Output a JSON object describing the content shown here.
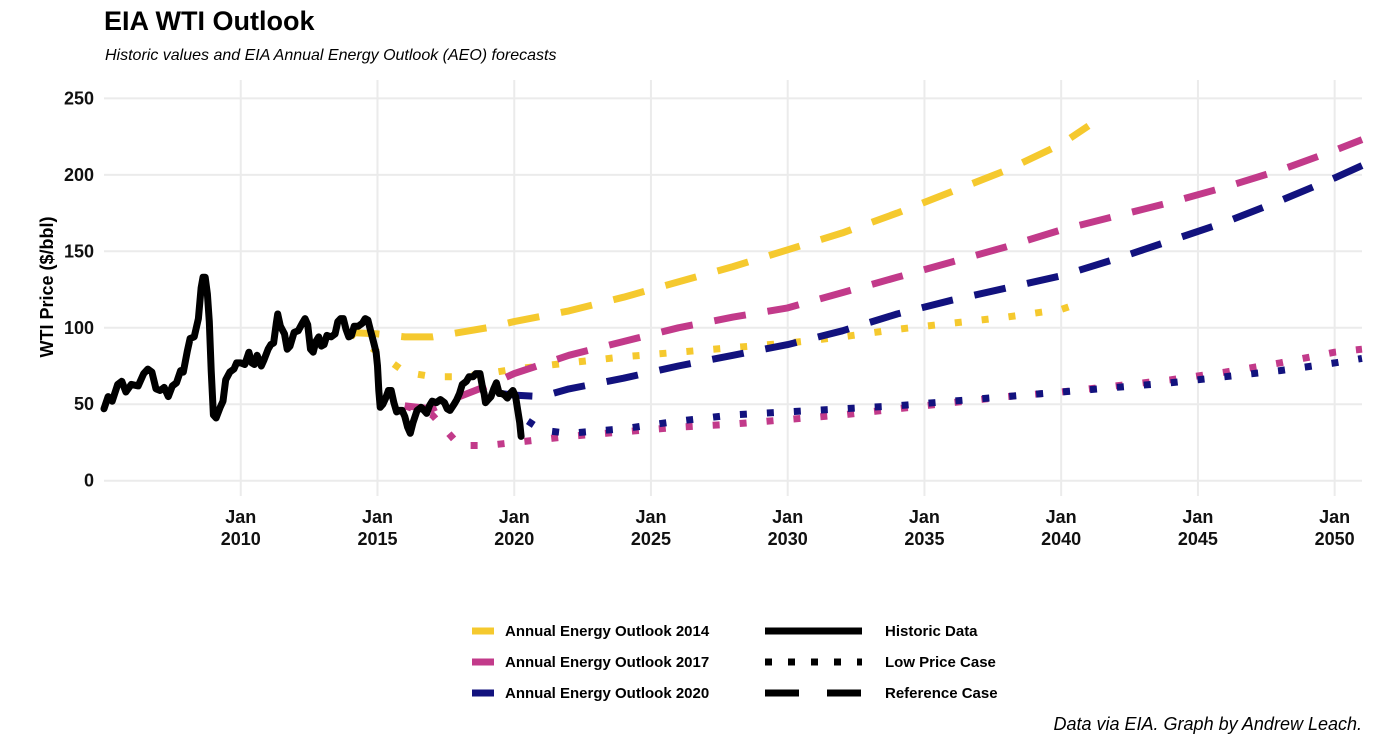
{
  "header": {
    "title": "EIA WTI Outlook",
    "subtitle": "Historic values and EIA Annual Energy Outlook (AEO) forecasts"
  },
  "caption": "Data via EIA. Graph by Andrew Leach.",
  "colors": {
    "aeo2014": "#F5C92E",
    "aeo2017": "#C23A8A",
    "aeo2020": "#12127E",
    "historic": "#000000",
    "grid": "#EBEBEB"
  },
  "chart_data": {
    "type": "line",
    "title": "EIA WTI Outlook",
    "subtitle": "Historic values and EIA Annual Energy Outlook (AEO) forecasts",
    "xlabel": "",
    "ylabel": "WTI Price ($/bbl)",
    "ylim": [
      -10,
      262
    ],
    "xlim": [
      2005.0,
      2051.0
    ],
    "grid": true,
    "legend_position": "bottom",
    "y_ticks": [
      0,
      50,
      100,
      150,
      200,
      250
    ],
    "x_ticks": [
      {
        "value": 2010,
        "label": [
          "Jan",
          "2010"
        ]
      },
      {
        "value": 2015,
        "label": [
          "Jan",
          "2015"
        ]
      },
      {
        "value": 2020,
        "label": [
          "Jan",
          "2020"
        ]
      },
      {
        "value": 2025,
        "label": [
          "Jan",
          "2025"
        ]
      },
      {
        "value": 2030,
        "label": [
          "Jan",
          "2030"
        ]
      },
      {
        "value": 2035,
        "label": [
          "Jan",
          "2035"
        ]
      },
      {
        "value": 2040,
        "label": [
          "Jan",
          "2040"
        ]
      },
      {
        "value": 2045,
        "label": [
          "Jan",
          "2045"
        ]
      },
      {
        "value": 2050,
        "label": [
          "Jan",
          "2050"
        ]
      }
    ],
    "legend": {
      "color": [
        {
          "label": "Annual Energy Outlook 2014",
          "color_key": "aeo2014"
        },
        {
          "label": "Annual Energy Outlook 2017",
          "color_key": "aeo2017"
        },
        {
          "label": "Annual Energy Outlook 2020",
          "color_key": "aeo2020"
        }
      ],
      "linetype": [
        {
          "label": "Historic Data",
          "style": "solid"
        },
        {
          "label": "Low Price Case",
          "style": "dotted"
        },
        {
          "label": "Reference Case",
          "style": "dashed"
        }
      ]
    },
    "series": [
      {
        "id": "aeo2014-ref",
        "outlook": "Annual Energy Outlook 2014",
        "case": "Reference Case",
        "style": "dashed",
        "color_key": "aeo2014",
        "points": [
          [
            2013.9,
            97
          ],
          [
            2015,
            96
          ],
          [
            2016,
            94
          ],
          [
            2017,
            94
          ],
          [
            2018,
            97
          ],
          [
            2019,
            100
          ],
          [
            2020,
            104
          ],
          [
            2022,
            111
          ],
          [
            2024,
            120
          ],
          [
            2026,
            130
          ],
          [
            2028,
            140
          ],
          [
            2030,
            151
          ],
          [
            2032,
            162
          ],
          [
            2034,
            175
          ],
          [
            2036,
            189
          ],
          [
            2038,
            203
          ],
          [
            2040,
            220
          ],
          [
            2041,
            232
          ]
        ]
      },
      {
        "id": "aeo2014-low",
        "outlook": "Annual Energy Outlook 2014",
        "case": "Low Price Case",
        "style": "dotted",
        "color_key": "aeo2014",
        "points": [
          [
            2014,
            97
          ],
          [
            2015,
            84
          ],
          [
            2016,
            71
          ],
          [
            2017,
            68
          ],
          [
            2018,
            68
          ],
          [
            2019,
            70
          ],
          [
            2020,
            73
          ],
          [
            2022,
            77
          ],
          [
            2024,
            81
          ],
          [
            2026,
            84
          ],
          [
            2028,
            87
          ],
          [
            2030,
            90
          ],
          [
            2032,
            94
          ],
          [
            2034,
            99
          ],
          [
            2036,
            103
          ],
          [
            2038,
            107
          ],
          [
            2040,
            112
          ],
          [
            2040.5,
            115
          ]
        ]
      },
      {
        "id": "aeo2017-ref",
        "outlook": "Annual Energy Outlook 2017",
        "case": "Reference Case",
        "style": "dashed",
        "color_key": "aeo2017",
        "points": [
          [
            2016,
            49
          ],
          [
            2017,
            47
          ],
          [
            2018,
            55
          ],
          [
            2019,
            62
          ],
          [
            2020,
            70
          ],
          [
            2022,
            82
          ],
          [
            2024,
            91
          ],
          [
            2026,
            100
          ],
          [
            2028,
            107
          ],
          [
            2030,
            113
          ],
          [
            2032,
            123
          ],
          [
            2034,
            133
          ],
          [
            2036,
            143
          ],
          [
            2038,
            153
          ],
          [
            2040,
            164
          ],
          [
            2042,
            173
          ],
          [
            2044,
            182
          ],
          [
            2046,
            192
          ],
          [
            2048,
            203
          ],
          [
            2050,
            216
          ],
          [
            2051,
            223
          ]
        ]
      },
      {
        "id": "aeo2017-low",
        "outlook": "Annual Energy Outlook 2017",
        "case": "Low Price Case",
        "style": "dotted",
        "color_key": "aeo2017",
        "points": [
          [
            2016,
            49
          ],
          [
            2017,
            43
          ],
          [
            2018,
            23
          ],
          [
            2019,
            23
          ],
          [
            2020,
            25
          ],
          [
            2022,
            29
          ],
          [
            2024,
            32
          ],
          [
            2026,
            35
          ],
          [
            2028,
            37
          ],
          [
            2030,
            40
          ],
          [
            2032,
            43
          ],
          [
            2034,
            47
          ],
          [
            2036,
            51
          ],
          [
            2038,
            55
          ],
          [
            2040,
            58
          ],
          [
            2042,
            62
          ],
          [
            2044,
            66
          ],
          [
            2046,
            71
          ],
          [
            2048,
            77
          ],
          [
            2050,
            84
          ],
          [
            2051,
            86
          ]
        ]
      },
      {
        "id": "aeo2020-ref",
        "outlook": "Annual Energy Outlook 2020",
        "case": "Reference Case",
        "style": "dashed",
        "color_key": "aeo2020",
        "points": [
          [
            2019.5,
            57
          ],
          [
            2020,
            56
          ],
          [
            2021,
            55
          ],
          [
            2022,
            60
          ],
          [
            2024,
            67
          ],
          [
            2026,
            75
          ],
          [
            2028,
            82
          ],
          [
            2030,
            89
          ],
          [
            2032,
            98
          ],
          [
            2034,
            109
          ],
          [
            2036,
            118
          ],
          [
            2038,
            126
          ],
          [
            2040,
            134
          ],
          [
            2042,
            145
          ],
          [
            2044,
            157
          ],
          [
            2046,
            169
          ],
          [
            2048,
            183
          ],
          [
            2050,
            198
          ],
          [
            2051,
            206
          ]
        ]
      },
      {
        "id": "aeo2020-low",
        "outlook": "Annual Energy Outlook 2020",
        "case": "Low Price Case",
        "style": "dotted",
        "color_key": "aeo2020",
        "points": [
          [
            2020.5,
            39
          ],
          [
            2021,
            33
          ],
          [
            2022,
            31
          ],
          [
            2024,
            34
          ],
          [
            2026,
            39
          ],
          [
            2028,
            43
          ],
          [
            2030,
            45
          ],
          [
            2032,
            47
          ],
          [
            2034,
            49
          ],
          [
            2036,
            52
          ],
          [
            2038,
            55
          ],
          [
            2040,
            58
          ],
          [
            2042,
            61
          ],
          [
            2044,
            64
          ],
          [
            2046,
            68
          ],
          [
            2048,
            72
          ],
          [
            2050,
            77
          ],
          [
            2051,
            80
          ]
        ]
      },
      {
        "id": "historic",
        "outlook": "",
        "case": "Historic Data",
        "style": "solid",
        "color_key": "historic",
        "points": [
          [
            2005.0,
            47
          ],
          [
            2005.15,
            55
          ],
          [
            2005.3,
            52
          ],
          [
            2005.5,
            63
          ],
          [
            2005.65,
            65
          ],
          [
            2005.8,
            58
          ],
          [
            2006.0,
            63
          ],
          [
            2006.25,
            62
          ],
          [
            2006.45,
            70
          ],
          [
            2006.6,
            73
          ],
          [
            2006.75,
            71
          ],
          [
            2006.9,
            60
          ],
          [
            2007.05,
            59
          ],
          [
            2007.2,
            61
          ],
          [
            2007.35,
            55
          ],
          [
            2007.5,
            62
          ],
          [
            2007.65,
            64
          ],
          [
            2007.8,
            72
          ],
          [
            2007.9,
            71
          ],
          [
            2008.05,
            85
          ],
          [
            2008.15,
            93
          ],
          [
            2008.3,
            94
          ],
          [
            2008.45,
            106
          ],
          [
            2008.55,
            126
          ],
          [
            2008.62,
            133
          ],
          [
            2008.7,
            133
          ],
          [
            2008.78,
            122
          ],
          [
            2008.85,
            104
          ],
          [
            2008.92,
            72
          ],
          [
            2009.0,
            43
          ],
          [
            2009.1,
            41
          ],
          [
            2009.25,
            48
          ],
          [
            2009.35,
            52
          ],
          [
            2009.45,
            66
          ],
          [
            2009.6,
            71
          ],
          [
            2009.75,
            73
          ],
          [
            2009.85,
            77
          ],
          [
            2010.0,
            77
          ],
          [
            2010.15,
            76
          ],
          [
            2010.3,
            84
          ],
          [
            2010.4,
            77
          ],
          [
            2010.5,
            76
          ],
          [
            2010.6,
            82
          ],
          [
            2010.75,
            75
          ],
          [
            2010.85,
            79
          ],
          [
            2011.0,
            86
          ],
          [
            2011.1,
            89
          ],
          [
            2011.2,
            90
          ],
          [
            2011.3,
            103
          ],
          [
            2011.35,
            109
          ],
          [
            2011.45,
            101
          ],
          [
            2011.6,
            96
          ],
          [
            2011.7,
            86
          ],
          [
            2011.8,
            88
          ],
          [
            2011.95,
            97
          ],
          [
            2012.1,
            98
          ],
          [
            2012.25,
            103
          ],
          [
            2012.35,
            106
          ],
          [
            2012.45,
            102
          ],
          [
            2012.55,
            86
          ],
          [
            2012.65,
            84
          ],
          [
            2012.75,
            91
          ],
          [
            2012.85,
            94
          ],
          [
            2012.95,
            88
          ],
          [
            2013.05,
            89
          ],
          [
            2013.15,
            95
          ],
          [
            2013.3,
            94
          ],
          [
            2013.45,
            96
          ],
          [
            2013.55,
            104
          ],
          [
            2013.65,
            106
          ],
          [
            2013.75,
            106
          ],
          [
            2013.85,
            99
          ],
          [
            2013.95,
            94
          ],
          [
            2014.05,
            95
          ],
          [
            2014.15,
            101
          ],
          [
            2014.3,
            101
          ],
          [
            2014.45,
            103
          ],
          [
            2014.55,
            106
          ],
          [
            2014.65,
            105
          ],
          [
            2014.75,
            98
          ],
          [
            2014.85,
            91
          ],
          [
            2014.95,
            84
          ],
          [
            2015.0,
            75
          ],
          [
            2015.05,
            59
          ],
          [
            2015.1,
            48
          ],
          [
            2015.2,
            50
          ],
          [
            2015.3,
            54
          ],
          [
            2015.4,
            59
          ],
          [
            2015.5,
            59
          ],
          [
            2015.6,
            51
          ],
          [
            2015.7,
            45
          ],
          [
            2015.8,
            46
          ],
          [
            2015.9,
            46
          ],
          [
            2016.0,
            42
          ],
          [
            2016.1,
            35
          ],
          [
            2016.2,
            31
          ],
          [
            2016.3,
            38
          ],
          [
            2016.45,
            46
          ],
          [
            2016.6,
            48
          ],
          [
            2016.7,
            46
          ],
          [
            2016.8,
            44
          ],
          [
            2016.9,
            49
          ],
          [
            2017.0,
            52
          ],
          [
            2017.15,
            51
          ],
          [
            2017.3,
            53
          ],
          [
            2017.45,
            51
          ],
          [
            2017.55,
            47
          ],
          [
            2017.65,
            46
          ],
          [
            2017.8,
            50
          ],
          [
            2017.9,
            53
          ],
          [
            2018.0,
            57
          ],
          [
            2018.1,
            63
          ],
          [
            2018.25,
            65
          ],
          [
            2018.35,
            68
          ],
          [
            2018.5,
            68
          ],
          [
            2018.6,
            70
          ],
          [
            2018.75,
            70
          ],
          [
            2018.8,
            65
          ],
          [
            2018.85,
            60
          ],
          [
            2018.9,
            57
          ],
          [
            2018.95,
            51
          ],
          [
            2019.05,
            53
          ],
          [
            2019.15,
            55
          ],
          [
            2019.25,
            60
          ],
          [
            2019.35,
            64
          ],
          [
            2019.45,
            57
          ],
          [
            2019.55,
            57
          ],
          [
            2019.65,
            56
          ],
          [
            2019.75,
            54
          ],
          [
            2019.85,
            57
          ],
          [
            2019.95,
            59
          ],
          [
            2020.05,
            55
          ],
          [
            2020.12,
            47
          ],
          [
            2020.2,
            38
          ],
          [
            2020.25,
            29
          ]
        ]
      }
    ]
  }
}
